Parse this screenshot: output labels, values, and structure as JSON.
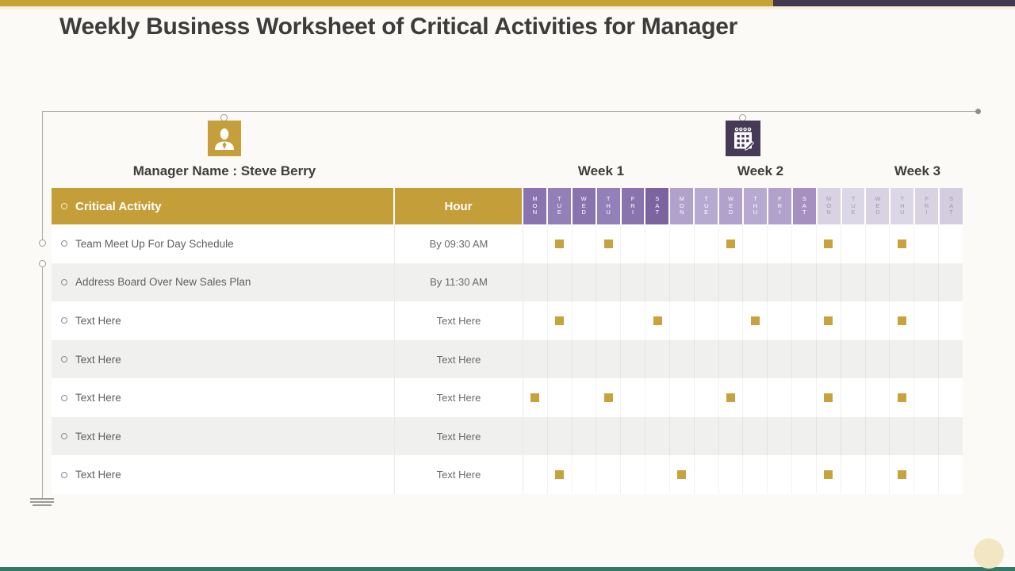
{
  "page": {
    "title": "Weekly Business Worksheet of Critical Activities for Manager"
  },
  "manager": {
    "label": "Manager Name : Steve Berry",
    "icon": "person-icon"
  },
  "calendar": {
    "icon": "calendar-icon"
  },
  "weeks": [
    {
      "label": "Week 1"
    },
    {
      "label": "Week 2"
    },
    {
      "label": "Week 3"
    }
  ],
  "days": [
    "MON",
    "TUE",
    "WED",
    "THU",
    "FRI",
    "SAT"
  ],
  "table": {
    "headers": {
      "activity": "Critical Activity",
      "hour": "Hour"
    },
    "rows": [
      {
        "activity": "Team Meet Up For Day Schedule",
        "hour": "By 09:30 AM",
        "marks": [
          1,
          3,
          8,
          12,
          15
        ]
      },
      {
        "activity": "Address Board Over New Sales Plan",
        "hour": "By 11:30 AM",
        "marks": []
      },
      {
        "activity": "Text Here",
        "hour": "Text Here",
        "marks": [
          1,
          5,
          9,
          12,
          15
        ]
      },
      {
        "activity": "Text Here",
        "hour": "Text Here",
        "marks": []
      },
      {
        "activity": "Text Here",
        "hour": "Text Here",
        "marks": [
          0,
          3,
          8,
          12,
          15
        ]
      },
      {
        "activity": "Text Here",
        "hour": "Text Here",
        "marks": []
      },
      {
        "activity": "Text Here",
        "hour": "Text Here",
        "marks": [
          1,
          6,
          12,
          15
        ]
      }
    ]
  },
  "colors": {
    "top_bar_gold": "#c8a136",
    "top_bar_purple": "#44384f",
    "header_gold": "#c49e39",
    "mark_gold": "#c8a23c",
    "manager_icon_bg": "#c59f3b",
    "calendar_icon_bg": "#473a57",
    "bottom_bar_teal": "#327a68",
    "corner_circle_cream": "#f3e6c3",
    "week_cols": [
      [
        "#8a74af",
        "#9280b8"
      ],
      [
        "#b0a2ca",
        "#b7aad0"
      ],
      [
        "#d8d2e2",
        "#dcd7e6"
      ]
    ],
    "week_sat": [
      "#7c64a0",
      "#a590c1",
      "#d4cde0"
    ],
    "week_text": [
      "#ffffff",
      "#ffffff",
      "#9f98ad"
    ]
  }
}
